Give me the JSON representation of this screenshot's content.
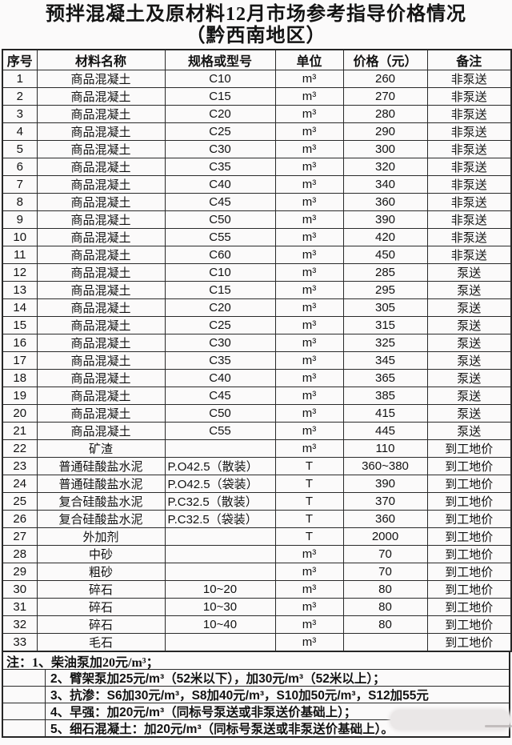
{
  "title": {
    "line1": "预拌混凝土及原材料12月市场参考指导价格情况",
    "line2": "（黔西南地区）"
  },
  "table": {
    "headers": [
      "序号",
      "材料名称",
      "规格或型号",
      "单位",
      "价格（元）",
      "备注"
    ],
    "rows": [
      [
        "1",
        "商品混凝土",
        "C10",
        "m³",
        "260",
        "非泵送"
      ],
      [
        "2",
        "商品混凝土",
        "C15",
        "m³",
        "270",
        "非泵送"
      ],
      [
        "3",
        "商品混凝土",
        "C20",
        "m³",
        "280",
        "非泵送"
      ],
      [
        "4",
        "商品混凝土",
        "C25",
        "m³",
        "290",
        "非泵送"
      ],
      [
        "5",
        "商品混凝土",
        "C30",
        "m³",
        "300",
        "非泵送"
      ],
      [
        "6",
        "商品混凝土",
        "C35",
        "m³",
        "320",
        "非泵送"
      ],
      [
        "7",
        "商品混凝土",
        "C40",
        "m³",
        "340",
        "非泵送"
      ],
      [
        "8",
        "商品混凝土",
        "C45",
        "m³",
        "360",
        "非泵送"
      ],
      [
        "9",
        "商品混凝土",
        "C50",
        "m³",
        "390",
        "非泵送"
      ],
      [
        "10",
        "商品混凝土",
        "C55",
        "m³",
        "420",
        "非泵送"
      ],
      [
        "11",
        "商品混凝土",
        "C60",
        "m³",
        "450",
        "非泵送"
      ],
      [
        "12",
        "商品混凝土",
        "C10",
        "m³",
        "285",
        "泵送"
      ],
      [
        "13",
        "商品混凝土",
        "C15",
        "m³",
        "295",
        "泵送"
      ],
      [
        "14",
        "商品混凝土",
        "C20",
        "m³",
        "305",
        "泵送"
      ],
      [
        "15",
        "商品混凝土",
        "C25",
        "m³",
        "315",
        "泵送"
      ],
      [
        "16",
        "商品混凝土",
        "C30",
        "m³",
        "325",
        "泵送"
      ],
      [
        "17",
        "商品混凝土",
        "C35",
        "m³",
        "345",
        "泵送"
      ],
      [
        "18",
        "商品混凝土",
        "C40",
        "m³",
        "365",
        "泵送"
      ],
      [
        "19",
        "商品混凝土",
        "C45",
        "m³",
        "385",
        "泵送"
      ],
      [
        "20",
        "商品混凝土",
        "C50",
        "m³",
        "415",
        "泵送"
      ],
      [
        "21",
        "商品混凝土",
        "C55",
        "m³",
        "445",
        "泵送"
      ],
      [
        "22",
        "矿渣",
        "",
        "m³",
        "110",
        "到工地价"
      ],
      [
        "23",
        "普通硅酸盐水泥",
        "P.O42.5（散装）",
        "T",
        "360~380",
        "到工地价"
      ],
      [
        "24",
        "普通硅酸盐水泥",
        "P.O42.5（袋装）",
        "T",
        "390",
        "到工地价"
      ],
      [
        "25",
        "复合硅酸盐水泥",
        "P.C32.5（散装）",
        "T",
        "370",
        "到工地价"
      ],
      [
        "26",
        "复合硅酸盐水泥",
        "P.C32.5（袋装）",
        "T",
        "360",
        "到工地价"
      ],
      [
        "27",
        "外加剂",
        "",
        "T",
        "2000",
        "到工地价"
      ],
      [
        "28",
        "中砂",
        "",
        "m³",
        "70",
        "到工地价"
      ],
      [
        "29",
        "粗砂",
        "",
        "m³",
        "70",
        "到工地价"
      ],
      [
        "30",
        "碎石",
        "10~20",
        "m³",
        "80",
        "到工地价"
      ],
      [
        "31",
        "碎石",
        "10~30",
        "m³",
        "80",
        "到工地价"
      ],
      [
        "32",
        "碎石",
        "10~40",
        "m³",
        "80",
        "到工地价"
      ],
      [
        "33",
        "毛石",
        "",
        "m³",
        "",
        "到工地价"
      ]
    ]
  },
  "notes": {
    "label": "注：",
    "items": [
      "1、柴油泵加20元/m³；",
      "2、臂架泵加25元/m³（52米以下），加30元/m³（52米以上）；",
      "3、抗渗：S6加30元/m³，S8加40元/m³，S10加50元/m³，S12加55元",
      "4、早强：加20元/m³（同标号泵送或非泵送价基础上）；",
      "5、细石混凝土：加20元/m³（同标号泵送或非泵送价基础上）。"
    ]
  },
  "colors": {
    "page_background": "#fbfafa",
    "text": "#121212",
    "table_border": "#2a2a2a",
    "redaction_blob": "#eae7e7"
  }
}
